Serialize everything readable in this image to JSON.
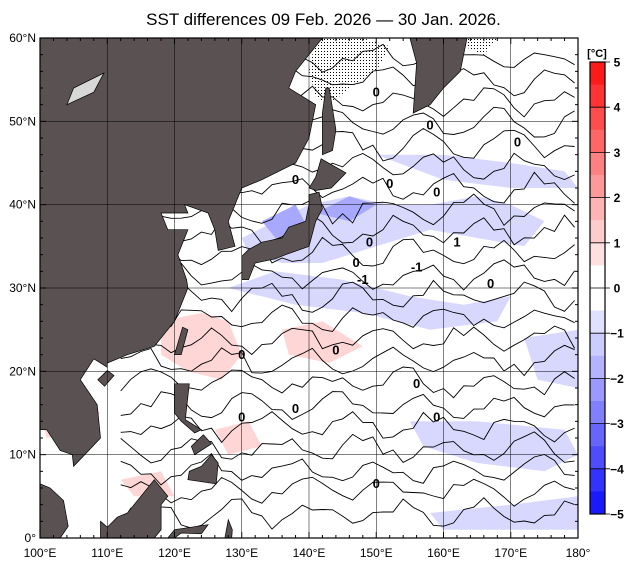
{
  "title": "SST differences 09 Feb. 2026 — 30 Jan. 2026.",
  "map": {
    "lon_range": [
      100,
      180
    ],
    "lat_range": [
      0,
      60
    ],
    "lon_labels": [
      "100°E",
      "110°E",
      "120°E",
      "130°E",
      "140°E",
      "150°E",
      "160°E",
      "170°E",
      "180°"
    ],
    "lat_labels": [
      "60°N",
      "50°N",
      "40°N",
      "30°N",
      "20°N",
      "10°N",
      "0°"
    ],
    "contour_labels": [
      {
        "text": "0",
        "lon": 150,
        "lat": 53
      },
      {
        "text": "0",
        "lon": 138,
        "lat": 42.5
      },
      {
        "text": "0",
        "lon": 152,
        "lat": 42
      },
      {
        "text": "0",
        "lon": 159,
        "lat": 41
      },
      {
        "text": "-1",
        "lon": 148,
        "lat": 30.5
      },
      {
        "text": "-1",
        "lon": 156,
        "lat": 32
      },
      {
        "text": "0",
        "lon": 147,
        "lat": 32.5
      },
      {
        "text": "1",
        "lon": 162,
        "lat": 35
      },
      {
        "text": "0",
        "lon": 167,
        "lat": 30
      },
      {
        "text": "0",
        "lon": 130,
        "lat": 21.5
      },
      {
        "text": "0",
        "lon": 144,
        "lat": 22
      },
      {
        "text": "0",
        "lon": 138,
        "lat": 15
      },
      {
        "text": "0",
        "lon": 156,
        "lat": 18
      },
      {
        "text": "0",
        "lon": 159,
        "lat": 14
      },
      {
        "text": "0",
        "lon": 130,
        "lat": 14
      },
      {
        "text": "0",
        "lon": 150,
        "lat": 6
      },
      {
        "text": "0",
        "lon": 158,
        "lat": 49
      },
      {
        "text": "0",
        "lon": 149,
        "lat": 35
      },
      {
        "text": "0",
        "lon": 171,
        "lat": 47
      }
    ],
    "colors": {
      "land": "#5a5252",
      "ocean": "#ffffff",
      "sea_ice_hatch": "#000000"
    }
  },
  "colorbar": {
    "unit": "[°C]",
    "tick_labels": [
      "5",
      "4",
      "3",
      "2",
      "1",
      "0",
      "−1",
      "−2",
      "−3",
      "−4",
      "−5"
    ],
    "colors": [
      "#ff1a1a",
      "#ff3333",
      "#ff4d4d",
      "#ff6666",
      "#ff8080",
      "#ff9999",
      "#ffb3b3",
      "#ffcccc",
      "#ffe0e0",
      "#ffffff",
      "#ffffff",
      "#e0e0ff",
      "#ccccff",
      "#b3b3ff",
      "#9999ff",
      "#8080ff",
      "#6666ff",
      "#4d4dff",
      "#3333ff",
      "#1a1aff"
    ]
  }
}
